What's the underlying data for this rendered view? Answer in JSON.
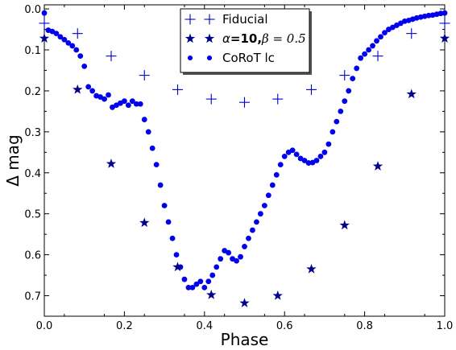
{
  "chart_data": {
    "type": "scatter",
    "xlabel": "Phase",
    "ylabel": "Δ mag",
    "xlim": [
      0.0,
      1.0
    ],
    "ylim": [
      0.75,
      -0.01
    ],
    "y_inverted": true,
    "grid": false,
    "legend_position": "top-center",
    "x_ticks": [
      "0.0",
      "0.2",
      "0.4",
      "0.6",
      "0.8",
      "1.0"
    ],
    "y_ticks": [
      "0.0",
      "0.1",
      "0.2",
      "0.3",
      "0.4",
      "0.5",
      "0.6",
      "0.7"
    ],
    "legend": {
      "fiducial": "Fiducial",
      "alpha_prefix": "α",
      "alpha_val": "=10,",
      "beta_label": "β = 0.5",
      "corot": "CoRoT lc"
    },
    "series": [
      {
        "name": "Fiducial",
        "marker": "plus",
        "color": "#0000cc",
        "x": [
          0.0,
          0.083,
          0.167,
          0.25,
          0.333,
          0.417,
          0.5,
          0.583,
          0.667,
          0.75,
          0.833,
          0.917,
          1.0
        ],
        "y": [
          0.035,
          0.06,
          0.115,
          0.162,
          0.197,
          0.22,
          0.228,
          0.22,
          0.197,
          0.162,
          0.115,
          0.06,
          0.035
        ]
      },
      {
        "name": "α=10,β=0.5",
        "marker": "star",
        "color": "#00008b",
        "x": [
          0.0,
          0.083,
          0.167,
          0.25,
          0.333,
          0.417,
          0.5,
          0.583,
          0.667,
          0.75,
          0.833,
          0.917,
          1.0
        ],
        "y": [
          0.072,
          0.197,
          0.378,
          0.522,
          0.63,
          0.698,
          0.718,
          0.7,
          0.635,
          0.528,
          0.384,
          0.208,
          0.072
        ]
      },
      {
        "name": "CoRoT lc",
        "marker": "dot",
        "color": "#0000ee",
        "x": [
          0.0,
          0.01,
          0.02,
          0.03,
          0.04,
          0.05,
          0.06,
          0.07,
          0.08,
          0.09,
          0.1,
          0.11,
          0.12,
          0.13,
          0.14,
          0.15,
          0.16,
          0.17,
          0.18,
          0.19,
          0.2,
          0.21,
          0.22,
          0.23,
          0.24,
          0.25,
          0.26,
          0.27,
          0.28,
          0.29,
          0.3,
          0.31,
          0.32,
          0.33,
          0.34,
          0.35,
          0.36,
          0.37,
          0.38,
          0.39,
          0.4,
          0.41,
          0.42,
          0.43,
          0.44,
          0.45,
          0.46,
          0.47,
          0.48,
          0.49,
          0.5,
          0.51,
          0.52,
          0.53,
          0.54,
          0.55,
          0.56,
          0.57,
          0.58,
          0.59,
          0.6,
          0.61,
          0.62,
          0.63,
          0.64,
          0.65,
          0.66,
          0.67,
          0.68,
          0.69,
          0.7,
          0.71,
          0.72,
          0.73,
          0.74,
          0.75,
          0.76,
          0.77,
          0.78,
          0.79,
          0.8,
          0.81,
          0.82,
          0.83,
          0.84,
          0.85,
          0.86,
          0.87,
          0.88,
          0.89,
          0.9,
          0.91,
          0.92,
          0.93,
          0.94,
          0.95,
          0.96,
          0.97,
          0.98,
          0.99,
          1.0
        ],
        "y": [
          0.01,
          0.052,
          0.055,
          0.06,
          0.068,
          0.075,
          0.083,
          0.09,
          0.1,
          0.115,
          0.14,
          0.19,
          0.2,
          0.212,
          0.215,
          0.22,
          0.21,
          0.24,
          0.235,
          0.23,
          0.225,
          0.235,
          0.225,
          0.232,
          0.232,
          0.27,
          0.3,
          0.34,
          0.38,
          0.43,
          0.48,
          0.52,
          0.56,
          0.6,
          0.63,
          0.66,
          0.68,
          0.68,
          0.672,
          0.665,
          0.68,
          0.665,
          0.65,
          0.63,
          0.61,
          0.59,
          0.595,
          0.61,
          0.615,
          0.605,
          0.58,
          0.56,
          0.54,
          0.52,
          0.5,
          0.48,
          0.455,
          0.43,
          0.405,
          0.38,
          0.36,
          0.35,
          0.345,
          0.355,
          0.365,
          0.37,
          0.376,
          0.375,
          0.37,
          0.36,
          0.35,
          0.33,
          0.3,
          0.275,
          0.25,
          0.225,
          0.2,
          0.17,
          0.145,
          0.12,
          0.11,
          0.1,
          0.09,
          0.078,
          0.068,
          0.058,
          0.05,
          0.045,
          0.04,
          0.035,
          0.03,
          0.028,
          0.025,
          0.022,
          0.02,
          0.018,
          0.016,
          0.015,
          0.013,
          0.011,
          0.01
        ]
      }
    ]
  }
}
